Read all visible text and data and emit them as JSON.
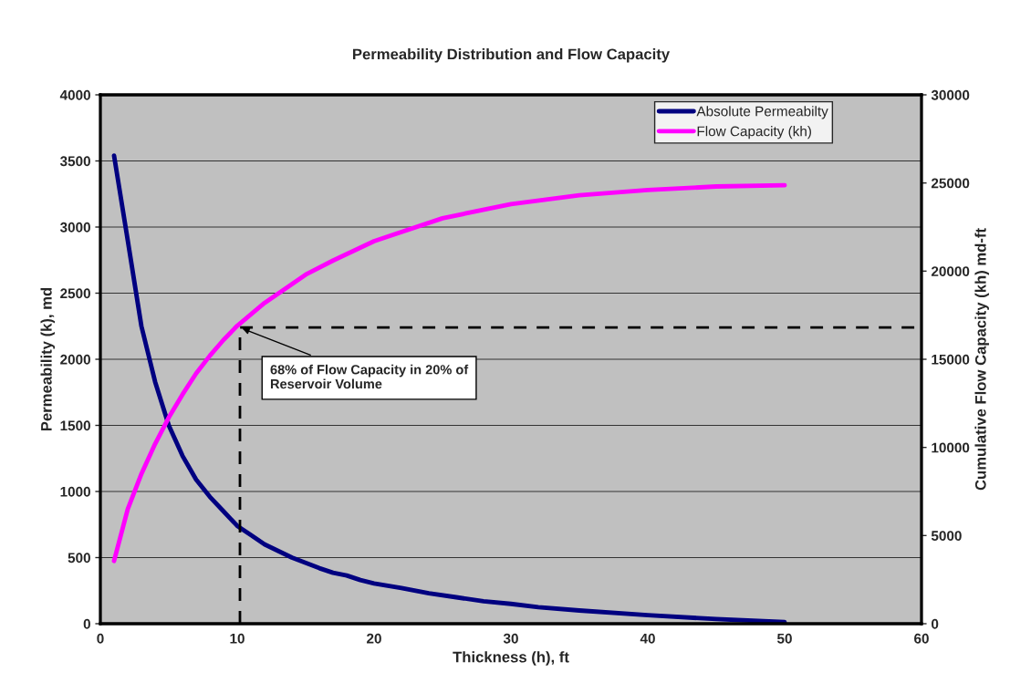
{
  "chart_data": {
    "type": "line",
    "title": "Permeability Distribution and Flow Capacity",
    "xlabel": "Thickness (h), ft",
    "ylabel": "Permeability (k), md",
    "y2label": "Cumulative Flow Capacity (kh) md-ft",
    "xlim": [
      0,
      60
    ],
    "xticks": [
      0,
      10,
      20,
      30,
      40,
      50,
      60
    ],
    "ylim": [
      0,
      4000
    ],
    "yticks": [
      0,
      500,
      1000,
      1500,
      2000,
      2500,
      3000,
      3500,
      4000
    ],
    "y2lim": [
      0,
      30000
    ],
    "y2ticks": [
      0,
      5000,
      10000,
      15000,
      20000,
      25000,
      30000
    ],
    "grid": "y",
    "legend": "top right",
    "series": [
      {
        "name": "Absolute Permeabilty",
        "color": "#000080",
        "x": [
          1,
          2,
          3,
          4,
          5,
          6,
          7,
          8,
          9,
          10,
          11,
          12,
          13,
          14,
          15,
          16,
          17,
          18,
          19,
          20,
          22,
          24,
          26,
          28,
          30,
          32,
          35,
          40,
          45,
          50
        ],
        "values": [
          3540,
          2900,
          2250,
          1830,
          1500,
          1270,
          1090,
          960,
          850,
          740,
          670,
          600,
          550,
          500,
          460,
          420,
          385,
          365,
          330,
          305,
          270,
          230,
          200,
          170,
          150,
          125,
          100,
          65,
          35,
          12
        ]
      },
      {
        "name": "Flow Capacity (kh)",
        "color": "#ff00ff",
        "axis": "y2",
        "x": [
          1,
          2,
          3,
          4,
          5,
          6,
          7,
          8,
          9,
          10,
          12,
          15,
          17,
          20,
          25,
          30,
          35,
          40,
          45,
          50
        ],
        "values": [
          3560,
          6500,
          8500,
          10200,
          11700,
          13000,
          14200,
          15200,
          16100,
          16900,
          18200,
          19800,
          20600,
          21700,
          23000,
          23800,
          24300,
          24600,
          24800,
          24870
        ]
      },
      {
        "type": "line",
        "color": "#000000",
        "line_style": "dashed",
        "axis": "y2",
        "x": [
          10.2,
          10.2,
          60
        ],
        "values": [
          0,
          16800,
          16800
        ]
      }
    ],
    "annotations": [
      {
        "text": "68% of Flow Capacity in 20% of\nReservoir Volume",
        "x": 10.2,
        "y": 2240
      }
    ]
  }
}
